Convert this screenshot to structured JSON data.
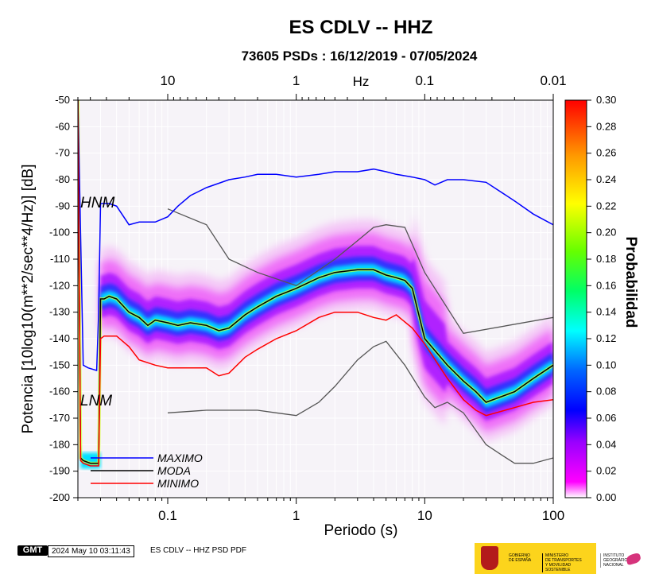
{
  "chart_data": {
    "type": "heatmap",
    "title": "ES CDLV -- HHZ",
    "subtitle": "73605 PSDs : 16/12/2019 - 07/05/2024",
    "xlabel": "Periodo (s)",
    "ylabel": "Potencia [10log10(m**2/sec**4/Hz)] [dB]",
    "x_scale": "log",
    "xlim": [
      0.02,
      100
    ],
    "ylim": [
      -200,
      -50
    ],
    "x_ticks": [
      0.1,
      1,
      10,
      100
    ],
    "x_tick_labels": [
      "0.1",
      "1",
      "10",
      "100"
    ],
    "y_ticks": [
      -50,
      -60,
      -70,
      -80,
      -90,
      -100,
      -110,
      -120,
      -130,
      -140,
      -150,
      -160,
      -170,
      -180,
      -190,
      -200
    ],
    "y_tick_labels": [
      "-50",
      "-60",
      "-70",
      "-80",
      "-90",
      "-100",
      "-110",
      "-120",
      "-130",
      "-140",
      "-150",
      "-160",
      "-170",
      "-180",
      "-190",
      "-200"
    ],
    "top_axis": {
      "label": "Hz",
      "ticks": [
        10,
        1,
        0.1,
        0.01
      ],
      "tick_labels": [
        "10",
        "1",
        "0.1",
        "0.01"
      ]
    },
    "colorbar": {
      "label": "Probabilidad",
      "min": 0,
      "max": 0.3,
      "ticks": [
        "0.00",
        "0.02",
        "0.04",
        "0.06",
        "0.08",
        "0.10",
        "0.12",
        "0.14",
        "0.16",
        "0.18",
        "0.20",
        "0.22",
        "0.24",
        "0.26",
        "0.28",
        "0.30"
      ],
      "colors": [
        "#ffffff",
        "#ff00ff",
        "#8000ff",
        "#0000ff",
        "#0080ff",
        "#00ffff",
        "#00ff80",
        "#80ff00",
        "#ffff00",
        "#ff8000",
        "#ff0000"
      ]
    },
    "series": [
      {
        "name": "MAXIMO",
        "color": "#0000ff",
        "x": [
          0.02,
          0.022,
          0.024,
          0.028,
          0.029,
          0.03,
          0.035,
          0.04,
          0.05,
          0.06,
          0.08,
          0.1,
          0.12,
          0.15,
          0.2,
          0.3,
          0.4,
          0.5,
          0.7,
          1,
          1.5,
          2,
          3,
          4,
          5,
          6,
          8,
          10,
          12,
          15,
          20,
          30,
          50,
          70,
          100
        ],
        "y": [
          -50,
          -150,
          -151,
          -152,
          -130,
          -89,
          -89,
          -90,
          -97,
          -96,
          -96,
          -94,
          -90,
          -86,
          -83,
          -80,
          -79,
          -78,
          -78,
          -79,
          -78,
          -77,
          -77,
          -76,
          -77,
          -78,
          -79,
          -80,
          -82,
          -80,
          -80,
          -81,
          -88,
          -93,
          -97
        ]
      },
      {
        "name": "MODA",
        "color": "#000000",
        "x": [
          0.02,
          0.021,
          0.022,
          0.025,
          0.029,
          0.03,
          0.032,
          0.035,
          0.04,
          0.05,
          0.06,
          0.07,
          0.08,
          0.1,
          0.12,
          0.15,
          0.2,
          0.25,
          0.3,
          0.4,
          0.5,
          0.7,
          1,
          1.5,
          2,
          3,
          4,
          5,
          6,
          7,
          8,
          10,
          15,
          20,
          25,
          30,
          50,
          70,
          100
        ],
        "y": [
          -50,
          -185,
          -186,
          -187,
          -187,
          -125,
          -125,
          -124,
          -125,
          -130,
          -132,
          -135,
          -133,
          -134,
          -135,
          -134,
          -135,
          -137,
          -136,
          -131,
          -128,
          -124,
          -121,
          -117,
          -115,
          -114,
          -114,
          -116,
          -117,
          -118,
          -121,
          -140,
          -150,
          -156,
          -160,
          -164,
          -160,
          -155,
          -150
        ]
      },
      {
        "name": "MINIMO",
        "color": "#ff0000",
        "x": [
          0.02,
          0.021,
          0.022,
          0.025,
          0.029,
          0.03,
          0.032,
          0.035,
          0.04,
          0.05,
          0.06,
          0.08,
          0.1,
          0.15,
          0.2,
          0.25,
          0.3,
          0.4,
          0.5,
          0.7,
          1,
          1.5,
          2,
          3,
          4,
          5,
          6,
          8,
          10,
          15,
          20,
          25,
          30,
          50,
          70,
          100
        ],
        "y": [
          -50,
          -186,
          -187,
          -188,
          -188,
          -140,
          -139,
          -139,
          -139,
          -143,
          -148,
          -150,
          -151,
          -151,
          -151,
          -154,
          -153,
          -147,
          -144,
          -140,
          -137,
          -132,
          -130,
          -130,
          -132,
          -133,
          -131,
          -136,
          -142,
          -155,
          -163,
          -167,
          -169,
          -166,
          -164,
          -163
        ]
      }
    ],
    "noise_models": [
      {
        "name": "HNM",
        "color": "#555555",
        "x": [
          0.1,
          0.2,
          0.3,
          0.5,
          1,
          2,
          3,
          4,
          5,
          7,
          10,
          20,
          100
        ],
        "y": [
          -91,
          -97,
          -110,
          -115,
          -120,
          -110,
          -103,
          -98,
          -97,
          -98,
          -115,
          -138,
          -132
        ]
      },
      {
        "name": "LNM",
        "color": "#555555",
        "x": [
          0.1,
          0.2,
          0.5,
          0.7,
          1,
          1.5,
          2,
          3,
          4,
          5,
          7,
          10,
          12,
          15,
          20,
          30,
          40,
          50,
          70,
          100
        ],
        "y": [
          -168,
          -167,
          -167,
          -168,
          -169,
          -164,
          -158,
          -148,
          -143,
          -141,
          -150,
          -162,
          -166,
          -164,
          -168,
          -180,
          -184,
          -187,
          -187,
          -185
        ]
      }
    ],
    "legend": {
      "position": "bottom-left",
      "entries": [
        "MAXIMO",
        "MODA",
        "MINIMO"
      ]
    },
    "grid": true
  },
  "footer": {
    "logo_text": "GMT",
    "timestamp": "2024 May 10 03:11:43",
    "plot_label": "ES CDLV -- HHZ PSD PDF",
    "gov_line1": "GOBIERNO\nDE ESPAÑA",
    "gov_line2": "MINISTERIO\nDE TRANSPORTES\nY MOVILIDAD SOSTENIBLE",
    "ign_text": "INSTITUTO\nGEOGRÁFICO\nNACIONAL"
  }
}
